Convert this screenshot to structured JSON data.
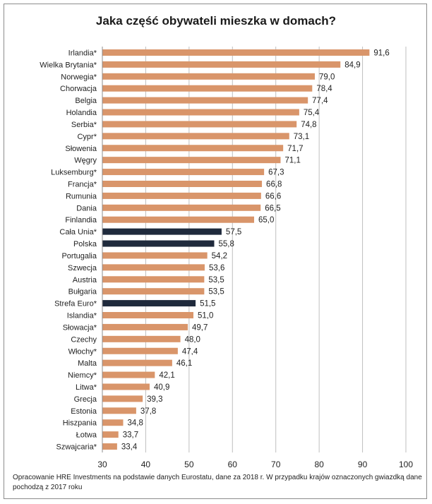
{
  "chart_data": {
    "type": "bar",
    "orientation": "horizontal",
    "title": "Jaka część obywateli mieszka w domach?",
    "categories": [
      "Irlandia*",
      "Wielka Brytania*",
      "Norwegia*",
      "Chorwacja",
      "Belgia",
      "Holandia",
      "Serbia*",
      "Cypr*",
      "Słowenia",
      "Węgry",
      "Luksemburg*",
      "Francja*",
      "Rumunia",
      "Dania",
      "Finlandia",
      "Cała Unia*",
      "Polska",
      "Portugalia",
      "Szwecja",
      "Austria",
      "Bułgaria",
      "Strefa Euro*",
      "Islandia*",
      "Słowacja*",
      "Czechy",
      "Włochy*",
      "Malta",
      "Niemcy*",
      "Litwa*",
      "Grecja",
      "Estonia",
      "Hiszpania",
      "Łotwa",
      "Szwajcaria*"
    ],
    "values": [
      91.6,
      84.9,
      79.0,
      78.4,
      77.4,
      75.4,
      74.8,
      73.1,
      71.7,
      71.1,
      67.3,
      66.8,
      66.6,
      66.5,
      65.0,
      57.5,
      55.8,
      54.2,
      53.6,
      53.5,
      53.5,
      51.5,
      51.0,
      49.7,
      48.0,
      47.4,
      46.1,
      42.1,
      40.9,
      39.3,
      37.8,
      34.8,
      33.7,
      33.4
    ],
    "value_labels": [
      "91,6",
      "84,9",
      "79,0",
      "78,4",
      "77,4",
      "75,4",
      "74,8",
      "73,1",
      "71,7",
      "71,1",
      "67,3",
      "66,8",
      "66,6",
      "66,5",
      "65,0",
      "57,5",
      "55,8",
      "54,2",
      "53,6",
      "53,5",
      "53,5",
      "51,5",
      "51,0",
      "49,7",
      "48,0",
      "47,4",
      "46,1",
      "42,1",
      "40,9",
      "39,3",
      "37,8",
      "34,8",
      "33,7",
      "33,4"
    ],
    "highlighted": [
      "Cała Unia*",
      "Polska",
      "Strefa Euro*"
    ],
    "xlim": [
      30,
      100
    ],
    "xticks": [
      "30",
      "40",
      "50",
      "60",
      "70",
      "80",
      "90",
      "100"
    ],
    "grid": "vertical",
    "colors": {
      "bar": "#d9956a",
      "highlight": "#1f2a3c",
      "grid": "#bfbfbf"
    }
  },
  "footnote": "Opracowanie HRE Investments na podstawie danych Eurostatu, dane za 2018 r. W przypadku krajów  oznaczonych gwiazdką dane pochodzą z 2017 roku"
}
